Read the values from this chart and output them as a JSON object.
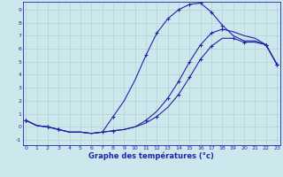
{
  "title": "Graphe des températures (°c)",
  "bg_color": "#cce8ec",
  "line_color": "#2222aa",
  "grid_color": "#b8d4d8",
  "xlim": [
    -0.3,
    23.3
  ],
  "ylim": [
    -1.4,
    9.6
  ],
  "yticks": [
    -1,
    0,
    1,
    2,
    3,
    4,
    5,
    6,
    7,
    8,
    9
  ],
  "xticks": [
    0,
    1,
    2,
    3,
    4,
    5,
    6,
    7,
    8,
    9,
    10,
    11,
    12,
    13,
    14,
    15,
    16,
    17,
    18,
    19,
    20,
    21,
    22,
    23
  ],
  "line1_x": [
    0,
    1,
    2,
    3,
    4,
    5,
    6,
    7,
    8,
    9,
    10,
    11,
    12,
    13,
    14,
    15,
    16,
    17,
    18,
    19,
    20,
    21,
    22,
    23
  ],
  "line1_y": [
    0.5,
    0.1,
    0.0,
    -0.2,
    -0.4,
    -0.4,
    -0.5,
    -0.4,
    0.8,
    2.0,
    3.6,
    5.5,
    7.2,
    8.3,
    9.0,
    9.4,
    9.5,
    8.8,
    7.8,
    7.0,
    6.6,
    6.6,
    6.3,
    4.8
  ],
  "line2_x": [
    0,
    1,
    2,
    3,
    4,
    5,
    6,
    7,
    8,
    9,
    10,
    11,
    12,
    13,
    14,
    15,
    16,
    17,
    18,
    19,
    20,
    21,
    22,
    23
  ],
  "line2_y": [
    0.5,
    0.1,
    0.0,
    -0.2,
    -0.4,
    -0.4,
    -0.5,
    -0.4,
    -0.3,
    -0.2,
    0.0,
    0.5,
    1.2,
    2.2,
    3.5,
    5.0,
    6.3,
    7.2,
    7.5,
    7.3,
    7.0,
    6.8,
    6.3,
    4.8
  ],
  "line3_x": [
    0,
    1,
    2,
    3,
    4,
    5,
    6,
    7,
    8,
    9,
    10,
    11,
    12,
    13,
    14,
    15,
    16,
    17,
    18,
    19,
    20,
    21,
    22,
    23
  ],
  "line3_y": [
    0.5,
    0.1,
    0.0,
    -0.2,
    -0.4,
    -0.4,
    -0.5,
    -0.4,
    -0.3,
    -0.2,
    0.0,
    0.3,
    0.8,
    1.5,
    2.5,
    3.8,
    5.2,
    6.2,
    6.8,
    6.8,
    6.5,
    6.5,
    6.3,
    4.8
  ],
  "marker1_x": [
    0,
    2,
    3,
    7,
    8,
    11,
    12,
    13,
    14,
    15,
    16,
    17,
    18,
    22,
    23
  ],
  "marker1_y": [
    0.5,
    0.0,
    -0.2,
    -0.4,
    0.8,
    5.5,
    7.2,
    8.3,
    9.0,
    9.4,
    9.5,
    8.8,
    7.8,
    6.3,
    4.8
  ],
  "marker2_x": [
    0,
    2,
    3,
    8,
    11,
    13,
    14,
    15,
    16,
    17,
    18,
    22,
    23
  ],
  "marker2_y": [
    0.5,
    0.0,
    -0.2,
    -0.3,
    0.5,
    2.2,
    3.5,
    5.0,
    6.3,
    7.2,
    7.5,
    6.3,
    4.8
  ],
  "marker3_x": [
    0,
    2,
    3,
    8,
    12,
    14,
    15,
    16,
    17,
    19,
    20,
    22,
    23
  ],
  "marker3_y": [
    0.5,
    0.0,
    -0.2,
    -0.3,
    0.8,
    2.5,
    3.8,
    5.2,
    6.2,
    6.8,
    6.5,
    6.3,
    4.8
  ]
}
